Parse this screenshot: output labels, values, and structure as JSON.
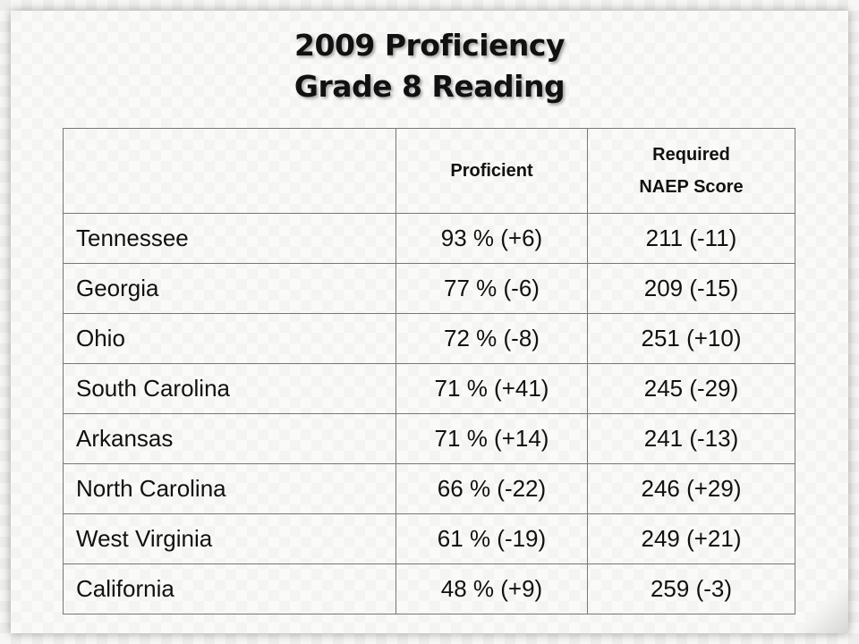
{
  "title": {
    "line1": "2009 Proficiency",
    "line2": "Grade 8 Reading"
  },
  "table": {
    "headers": {
      "state": "",
      "proficient": "Proficient",
      "required_line1": "Required",
      "required_line2": "NAEP Score"
    },
    "rows": [
      {
        "state": "Tennessee",
        "proficient": "93 % (+6)",
        "naep": "211 (-11)"
      },
      {
        "state": "Georgia",
        "proficient": "77 % (-6)",
        "naep": "209 (-15)"
      },
      {
        "state": "Ohio",
        "proficient": "72 % (-8)",
        "naep": "251 (+10)"
      },
      {
        "state": "South Carolina",
        "proficient": "71 % (+41)",
        "naep": "245 (-29)"
      },
      {
        "state": "Arkansas",
        "proficient": "71 % (+14)",
        "naep": "241 (-13)"
      },
      {
        "state": "North Carolina",
        "proficient": "66 % (-22)",
        "naep": "246 (+29)"
      },
      {
        "state": "West Virginia",
        "proficient": "61 % (-19)",
        "naep": "249 (+21)"
      },
      {
        "state": "California",
        "proficient": "48 % (+9)",
        "naep": "259 (-3)"
      }
    ]
  }
}
